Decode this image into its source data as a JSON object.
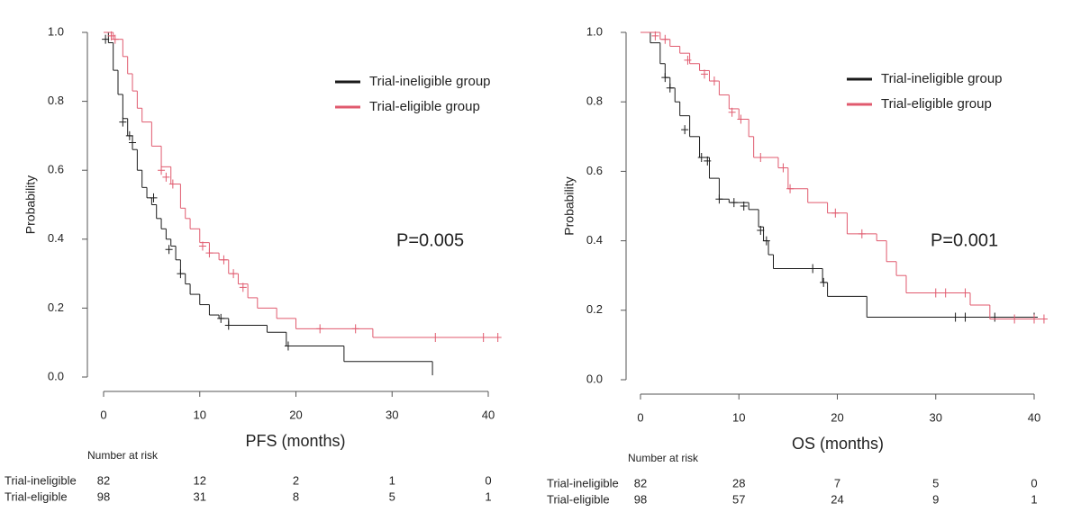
{
  "chart_data": [
    {
      "type": "kaplan-meier",
      "x_label": "PFS (months)",
      "y_label": "Probability",
      "annotation": "P=0.005",
      "legend": "upper right",
      "xlim": [
        0,
        40
      ],
      "xticks": [
        0,
        10,
        20,
        30,
        40
      ],
      "ylim": [
        0,
        1
      ],
      "yticks": [
        {
          "value": 0,
          "label": "0.0"
        },
        {
          "value": 0.2,
          "label": "0.2"
        },
        {
          "value": 0.4,
          "label": "0.4"
        },
        {
          "value": 0.6,
          "label": "0.6"
        },
        {
          "value": 0.8,
          "label": "0.8"
        },
        {
          "value": 1,
          "label": "1.0"
        }
      ],
      "series": [
        {
          "name": "Trial-ineligible group",
          "color": "#1a1a1a",
          "x": [
            0,
            0.5,
            1,
            1.5,
            2,
            2.5,
            3,
            3.5,
            4,
            4.5,
            5,
            5.5,
            6,
            6.5,
            7,
            7.5,
            8,
            8.5,
            9,
            10,
            11,
            12,
            13,
            17,
            19,
            25,
            34.2,
            34.2
          ],
          "values": [
            1.0,
            0.97,
            0.89,
            0.82,
            0.75,
            0.7,
            0.66,
            0.6,
            0.55,
            0.52,
            0.5,
            0.46,
            0.43,
            0.4,
            0.38,
            0.34,
            0.3,
            0.27,
            0.24,
            0.21,
            0.18,
            0.17,
            0.15,
            0.13,
            0.09,
            0.045,
            0.045,
            0.005
          ],
          "censored": {
            "x": [
              0.2,
              2.0,
              2.7,
              3.0,
              5.2,
              6.8,
              8.0,
              12.2,
              13.0,
              19.2
            ],
            "values": [
              0.98,
              0.74,
              0.7,
              0.68,
              0.52,
              0.37,
              0.3,
              0.17,
              0.15,
              0.09
            ]
          }
        },
        {
          "name": "Trial-eligible group",
          "color": "#e05a6e",
          "x": [
            0,
            1,
            2,
            2.5,
            3,
            3.5,
            4,
            5,
            6,
            7,
            8,
            8.5,
            9,
            10,
            11,
            12,
            13,
            14,
            15,
            16,
            18,
            20,
            28,
            41
          ],
          "values": [
            1.0,
            0.98,
            0.93,
            0.88,
            0.83,
            0.78,
            0.74,
            0.67,
            0.61,
            0.56,
            0.49,
            0.46,
            0.43,
            0.39,
            0.36,
            0.34,
            0.3,
            0.27,
            0.23,
            0.2,
            0.17,
            0.14,
            0.115,
            0.115
          ],
          "censored": {
            "x": [
              0.8,
              1.2,
              6.0,
              6.5,
              7.2,
              10.3,
              11.0,
              12.5,
              13.5,
              14.5,
              22.5,
              26.2,
              34.5,
              39.5,
              41.0
            ],
            "values": [
              0.99,
              0.98,
              0.6,
              0.58,
              0.56,
              0.38,
              0.36,
              0.34,
              0.3,
              0.26,
              0.14,
              0.14,
              0.115,
              0.115,
              0.115
            ]
          }
        }
      ],
      "risk_table": {
        "title": "Number at risk",
        "rows": [
          {
            "name": "Trial-ineligible",
            "values": [
              82,
              12,
              2,
              1,
              0
            ]
          },
          {
            "name": "Trial-eligible",
            "values": [
              98,
              31,
              8,
              5,
              1
            ]
          }
        ]
      }
    },
    {
      "type": "kaplan-meier",
      "x_label": "OS (months)",
      "y_label": "Probability",
      "annotation": "P=0.001",
      "legend": "upper right",
      "xlim": [
        0,
        40
      ],
      "xticks": [
        0,
        10,
        20,
        30,
        40
      ],
      "ylim": [
        0,
        1
      ],
      "yticks": [
        {
          "value": 0,
          "label": "0.0"
        },
        {
          "value": 0.2,
          "label": "0.2"
        },
        {
          "value": 0.4,
          "label": "0.4"
        },
        {
          "value": 0.6,
          "label": "0.6"
        },
        {
          "value": 0.8,
          "label": "0.8"
        },
        {
          "value": 1,
          "label": "1.0"
        }
      ],
      "series": [
        {
          "name": "Trial-ineligible group",
          "color": "#1a1a1a",
          "x": [
            0,
            1,
            2,
            2.5,
            3,
            3.5,
            4,
            5,
            6,
            7,
            8,
            9,
            11,
            12,
            12.5,
            13,
            13.5,
            18.5,
            19,
            23,
            40
          ],
          "values": [
            1.0,
            0.97,
            0.91,
            0.87,
            0.84,
            0.8,
            0.76,
            0.7,
            0.64,
            0.58,
            0.52,
            0.51,
            0.49,
            0.44,
            0.4,
            0.36,
            0.32,
            0.28,
            0.24,
            0.18,
            0.18
          ],
          "censored": {
            "x": [
              2.5,
              3.0,
              4.5,
              6.2,
              6.8,
              8.0,
              9.5,
              10.5,
              12.2,
              12.8,
              17.5,
              18.6,
              32,
              33,
              36,
              40
            ],
            "values": [
              0.87,
              0.84,
              0.72,
              0.64,
              0.63,
              0.52,
              0.51,
              0.5,
              0.43,
              0.4,
              0.32,
              0.28,
              0.18,
              0.18,
              0.18,
              0.18
            ]
          }
        },
        {
          "name": "Trial-eligible group",
          "color": "#e05a6e",
          "x": [
            0,
            2,
            3,
            4,
            5,
            6,
            7,
            8,
            9,
            10,
            11,
            11.5,
            14,
            15,
            17,
            19,
            21,
            24,
            25,
            26,
            27,
            33.5,
            35.5,
            41
          ],
          "values": [
            1.0,
            0.98,
            0.96,
            0.94,
            0.91,
            0.89,
            0.86,
            0.82,
            0.78,
            0.75,
            0.7,
            0.64,
            0.61,
            0.55,
            0.51,
            0.48,
            0.42,
            0.4,
            0.34,
            0.3,
            0.25,
            0.215,
            0.175,
            0.175
          ],
          "censored": {
            "x": [
              1.5,
              2.5,
              4.8,
              6.5,
              7.5,
              9.3,
              10.2,
              12.2,
              14.5,
              15.2,
              19.8,
              22.5,
              30,
              31,
              33,
              38,
              40,
              41
            ],
            "values": [
              0.99,
              0.98,
              0.92,
              0.88,
              0.86,
              0.77,
              0.75,
              0.64,
              0.61,
              0.55,
              0.48,
              0.42,
              0.25,
              0.25,
              0.25,
              0.175,
              0.175,
              0.175
            ]
          }
        }
      ],
      "risk_table": {
        "title": "Number at risk",
        "rows": [
          {
            "name": "Trial-ineligible",
            "values": [
              82,
              28,
              7,
              5,
              0
            ]
          },
          {
            "name": "Trial-eligible",
            "values": [
              98,
              57,
              24,
              9,
              1
            ]
          }
        ]
      }
    }
  ]
}
